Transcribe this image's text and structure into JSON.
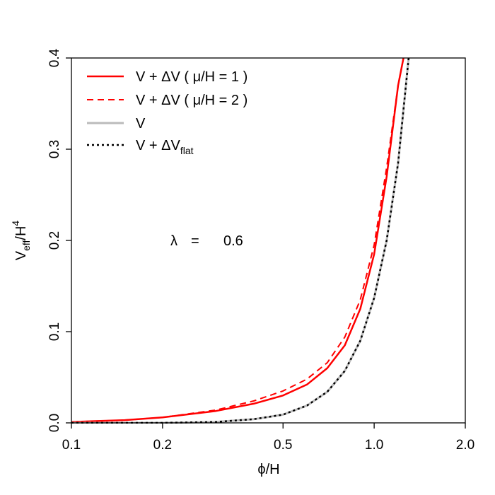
{
  "chart_data": {
    "type": "line",
    "title": "",
    "xlabel": "ϕ/H",
    "ylabel": "V_eff/H^4",
    "xscale": "log",
    "xlim": [
      0.1,
      2.0
    ],
    "ylim": [
      0.0,
      0.4
    ],
    "xticks": [
      0.1,
      0.2,
      0.5,
      1.0,
      2.0
    ],
    "xtick_labels": [
      "0.1",
      "0.2",
      "0.5",
      "1.0",
      "2.0"
    ],
    "yticks": [
      0.0,
      0.1,
      0.2,
      0.3,
      0.4
    ],
    "ytick_labels": [
      "0.0",
      "0.1",
      "0.2",
      "0.3",
      "0.4"
    ],
    "grid": false,
    "legend_position": "top-left",
    "annotation": {
      "lambda_symbol": "λ",
      "equals": "=",
      "value": "0.6"
    },
    "series": [
      {
        "name": "V + ΔV ( μ/H = 1 )",
        "color": "#ff0000",
        "style": "solid",
        "width": 2.5,
        "x": [
          0.1,
          0.15,
          0.2,
          0.3,
          0.4,
          0.5,
          0.6,
          0.7,
          0.8,
          0.9,
          1.0,
          1.1,
          1.2,
          1.25
        ],
        "y": [
          0.001,
          0.003,
          0.006,
          0.013,
          0.021,
          0.03,
          0.042,
          0.06,
          0.085,
          0.125,
          0.185,
          0.27,
          0.37,
          0.4
        ]
      },
      {
        "name": "V + ΔV ( μ/H = 2 )",
        "color": "#ff0000",
        "style": "dashed",
        "width": 2,
        "x": [
          0.1,
          0.15,
          0.2,
          0.3,
          0.4,
          0.5,
          0.6,
          0.7,
          0.8,
          0.9,
          1.0,
          1.1,
          1.2,
          1.25
        ],
        "y": [
          0.001,
          0.003,
          0.006,
          0.014,
          0.024,
          0.035,
          0.048,
          0.066,
          0.094,
          0.135,
          0.195,
          0.28,
          0.37,
          0.4
        ]
      },
      {
        "name": "V",
        "color": "#bbbbbb",
        "style": "solid",
        "width": 3,
        "x": [
          0.1,
          0.2,
          0.3,
          0.4,
          0.5,
          0.6,
          0.7,
          0.8,
          0.9,
          1.0,
          1.1,
          1.2,
          1.3
        ],
        "y": [
          0.0,
          0.0,
          0.001,
          0.004,
          0.009,
          0.019,
          0.034,
          0.057,
          0.09,
          0.137,
          0.2,
          0.285,
          0.4
        ]
      },
      {
        "name": "V + ΔV_flat",
        "color": "#000000",
        "style": "dotted",
        "width": 2.5,
        "x": [
          0.1,
          0.2,
          0.3,
          0.4,
          0.5,
          0.6,
          0.7,
          0.8,
          0.9,
          1.0,
          1.1,
          1.2,
          1.3
        ],
        "y": [
          0.0,
          0.0,
          0.001,
          0.004,
          0.009,
          0.019,
          0.034,
          0.057,
          0.09,
          0.137,
          0.2,
          0.285,
          0.4
        ]
      }
    ]
  }
}
